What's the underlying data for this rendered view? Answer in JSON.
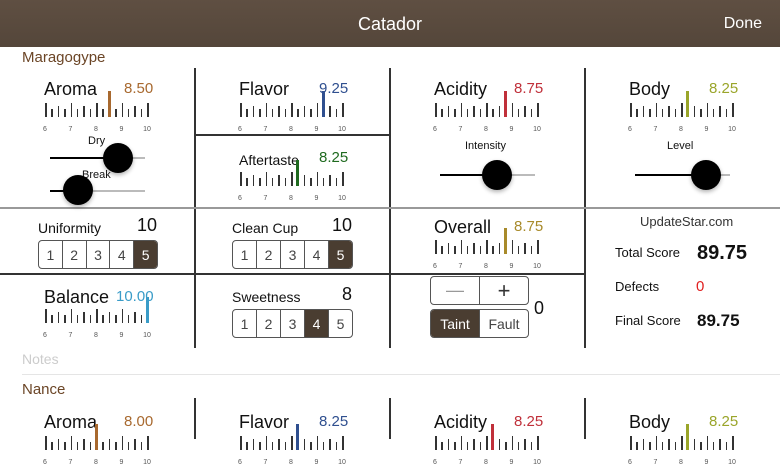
{
  "header": {
    "title": "Catador",
    "done_label": "Done",
    "color": "#5a4a3e"
  },
  "samples": [
    {
      "name": "Maragogype",
      "aroma": {
        "label": "Aroma",
        "value": "8.50",
        "v": 8.5,
        "color": "#a8692f",
        "dry_label": "Dry",
        "break_label": "Break",
        "dry": 0.72,
        "break": 0.24
      },
      "flavor": {
        "label": "Flavor",
        "value": "9.25",
        "v": 9.25,
        "color": "#2f4f8f"
      },
      "aftertaste": {
        "label": "Aftertaste",
        "value": "8.25",
        "v": 8.25,
        "color": "#1f6a1f"
      },
      "acidity": {
        "label": "Acidity",
        "value": "8.75",
        "v": 8.75,
        "color": "#c0303a",
        "intensity_label": "Intensity",
        "intensity": 0.6
      },
      "body": {
        "label": "Body",
        "value": "8.25",
        "v": 8.25,
        "color": "#9aa52a",
        "level_label": "Level",
        "level": 0.75
      },
      "uniformity": {
        "label": "Uniformity",
        "value": "10",
        "options": [
          "1",
          "2",
          "3",
          "4",
          "5"
        ],
        "selected": 5
      },
      "clean_cup": {
        "label": "Clean Cup",
        "value": "10",
        "options": [
          "1",
          "2",
          "3",
          "4",
          "5"
        ],
        "selected": 5
      },
      "overall": {
        "label": "Overall",
        "value": "8.75",
        "v": 8.75,
        "color": "#a88a2a"
      },
      "balance": {
        "label": "Balance",
        "value": "10.00",
        "v": 10,
        "color": "#3a9cc8"
      },
      "sweetness": {
        "label": "Sweetness",
        "value": "8",
        "options": [
          "1",
          "2",
          "3",
          "4",
          "5"
        ],
        "selected": 4
      },
      "defects": {
        "minus": "—",
        "plus": "+",
        "taint": "Taint",
        "fault": "Fault",
        "selected": "Taint",
        "count": "0"
      },
      "totals": {
        "total_label": "Total Score",
        "total": "89.75",
        "defects_label": "Defects",
        "defects": "0",
        "final_label": "Final Score",
        "final": "89.75"
      },
      "notes_placeholder": "Notes"
    },
    {
      "name": "Nance",
      "aroma": {
        "label": "Aroma",
        "value": "8.00",
        "v": 8.0,
        "color": "#a8692f"
      },
      "flavor": {
        "label": "Flavor",
        "value": "8.25",
        "v": 8.25,
        "color": "#2f4f8f"
      },
      "acidity": {
        "label": "Acidity",
        "value": "8.25",
        "v": 8.25,
        "color": "#c0303a"
      },
      "body": {
        "label": "Body",
        "value": "8.25",
        "v": 8.25,
        "color": "#9aa52a"
      }
    }
  ],
  "scale_labels": [
    "6",
    "7",
    "8",
    "9",
    "10"
  ],
  "watermark": "UpdateStar.com"
}
